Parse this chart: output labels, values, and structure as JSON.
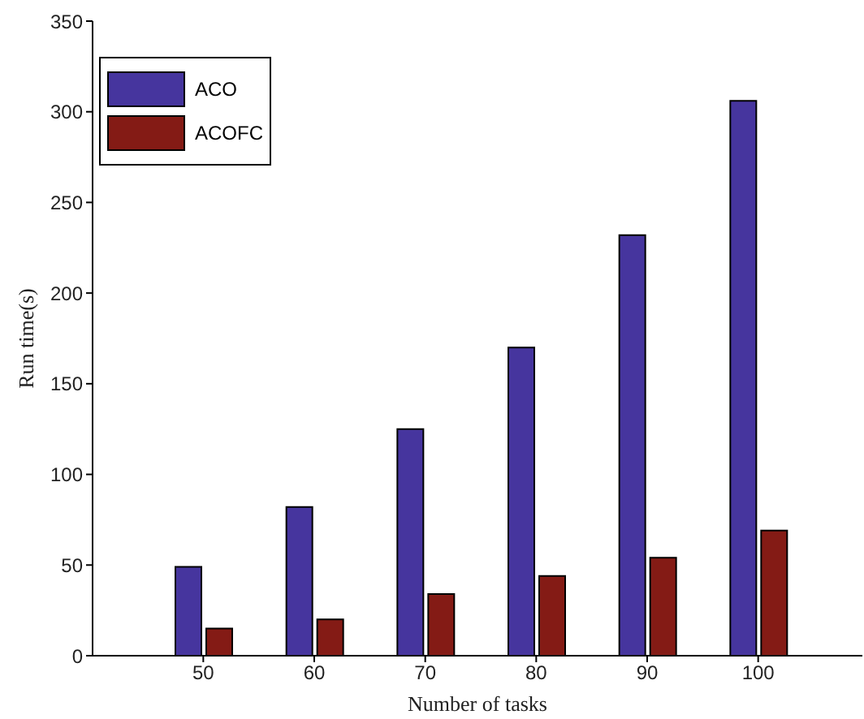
{
  "chart_data": {
    "type": "bar",
    "xlabel": "Number of tasks",
    "ylabel": "Run time(s)",
    "categories": [
      "50",
      "60",
      "70",
      "80",
      "90",
      "100"
    ],
    "series": [
      {
        "name": "ACO",
        "color": "#46359e",
        "values": [
          49,
          82,
          125,
          170,
          232,
          306
        ]
      },
      {
        "name": "ACOFC",
        "color": "#841b15",
        "values": [
          15,
          20,
          34,
          44,
          54,
          69
        ]
      }
    ],
    "ylim": [
      0,
      350
    ],
    "yticks": [
      0,
      50,
      100,
      150,
      200,
      250,
      300,
      350
    ],
    "grid": false,
    "legend": "top left"
  }
}
